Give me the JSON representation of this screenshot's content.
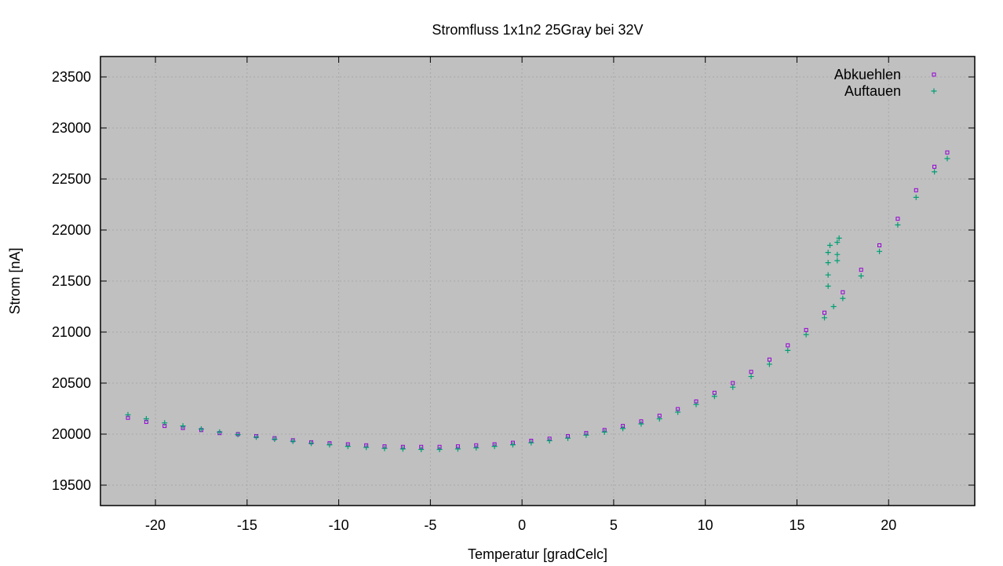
{
  "chart_data": {
    "type": "scatter",
    "title": "Stromfluss 1x1n2 25Gray bei 32V",
    "xlabel": "Temperatur [gradCelc]",
    "ylabel": "Strom [nA]",
    "xlim": [
      -23.0,
      24.7
    ],
    "ylim": [
      19300,
      23700
    ],
    "xticks": [
      -20,
      -15,
      -10,
      -5,
      0,
      5,
      10,
      15,
      20
    ],
    "yticks": [
      19500,
      20000,
      20500,
      21000,
      21500,
      22000,
      22500,
      23000,
      23500
    ],
    "grid": true,
    "background": "#c0c0c0",
    "legend_position": "top-right",
    "series": [
      {
        "name": "Abkuehlen",
        "marker": "square",
        "color": "#9400d3",
        "points": [
          [
            -21.5,
            20160
          ],
          [
            -20.5,
            20120
          ],
          [
            -19.5,
            20080
          ],
          [
            -18.5,
            20060
          ],
          [
            -17.5,
            20040
          ],
          [
            -16.5,
            20010
          ],
          [
            -15.5,
            20000
          ],
          [
            -14.5,
            19980
          ],
          [
            -13.5,
            19960
          ],
          [
            -12.5,
            19940
          ],
          [
            -11.5,
            19920
          ],
          [
            -10.5,
            19910
          ],
          [
            -9.5,
            19900
          ],
          [
            -8.5,
            19890
          ],
          [
            -7.5,
            19880
          ],
          [
            -6.5,
            19875
          ],
          [
            -5.5,
            19875
          ],
          [
            -4.5,
            19875
          ],
          [
            -3.5,
            19880
          ],
          [
            -2.5,
            19890
          ],
          [
            -1.5,
            19900
          ],
          [
            -0.5,
            19915
          ],
          [
            0.5,
            19935
          ],
          [
            1.5,
            19955
          ],
          [
            2.5,
            19980
          ],
          [
            3.5,
            20010
          ],
          [
            4.5,
            20040
          ],
          [
            5.5,
            20080
          ],
          [
            6.5,
            20125
          ],
          [
            7.5,
            20180
          ],
          [
            8.5,
            20245
          ],
          [
            9.5,
            20320
          ],
          [
            10.5,
            20405
          ],
          [
            11.5,
            20500
          ],
          [
            12.5,
            20610
          ],
          [
            13.5,
            20730
          ],
          [
            14.5,
            20870
          ],
          [
            15.5,
            21020
          ],
          [
            16.5,
            21190
          ],
          [
            17.5,
            21390
          ],
          [
            18.5,
            21610
          ],
          [
            19.5,
            21850
          ],
          [
            20.5,
            22110
          ],
          [
            21.5,
            22390
          ],
          [
            22.5,
            22620
          ],
          [
            23.2,
            22760
          ]
        ]
      },
      {
        "name": "Auftauen",
        "marker": "plus",
        "color": "#009e73",
        "points": [
          [
            -21.5,
            20190
          ],
          [
            -20.5,
            20150
          ],
          [
            -19.5,
            20110
          ],
          [
            -18.5,
            20080
          ],
          [
            -17.5,
            20050
          ],
          [
            -16.5,
            20020
          ],
          [
            -15.5,
            19995
          ],
          [
            -14.5,
            19970
          ],
          [
            -13.5,
            19950
          ],
          [
            -12.5,
            19930
          ],
          [
            -11.5,
            19910
          ],
          [
            -10.5,
            19895
          ],
          [
            -9.5,
            19880
          ],
          [
            -8.5,
            19870
          ],
          [
            -7.5,
            19860
          ],
          [
            -6.5,
            19855
          ],
          [
            -5.5,
            19850
          ],
          [
            -4.5,
            19850
          ],
          [
            -3.5,
            19855
          ],
          [
            -2.5,
            19865
          ],
          [
            -1.5,
            19880
          ],
          [
            -0.5,
            19895
          ],
          [
            0.5,
            19915
          ],
          [
            1.5,
            19935
          ],
          [
            2.5,
            19960
          ],
          [
            3.5,
            19990
          ],
          [
            4.5,
            20020
          ],
          [
            5.5,
            20055
          ],
          [
            6.5,
            20100
          ],
          [
            7.5,
            20150
          ],
          [
            8.5,
            20215
          ],
          [
            9.5,
            20290
          ],
          [
            10.5,
            20370
          ],
          [
            11.5,
            20460
          ],
          [
            12.5,
            20565
          ],
          [
            13.5,
            20685
          ],
          [
            14.5,
            20820
          ],
          [
            15.5,
            20975
          ],
          [
            16.5,
            21140
          ],
          [
            17.0,
            21250
          ],
          [
            17.5,
            21330
          ],
          [
            18.5,
            21550
          ],
          [
            19.5,
            21790
          ],
          [
            20.5,
            22050
          ],
          [
            21.5,
            22320
          ],
          [
            22.5,
            22570
          ],
          [
            23.2,
            22700
          ],
          [
            16.7,
            21450
          ],
          [
            16.7,
            21560
          ],
          [
            16.7,
            21680
          ],
          [
            16.7,
            21780
          ],
          [
            16.8,
            21850
          ],
          [
            17.2,
            21700
          ],
          [
            17.2,
            21760
          ],
          [
            17.2,
            21880
          ],
          [
            17.3,
            21920
          ]
        ]
      }
    ]
  }
}
